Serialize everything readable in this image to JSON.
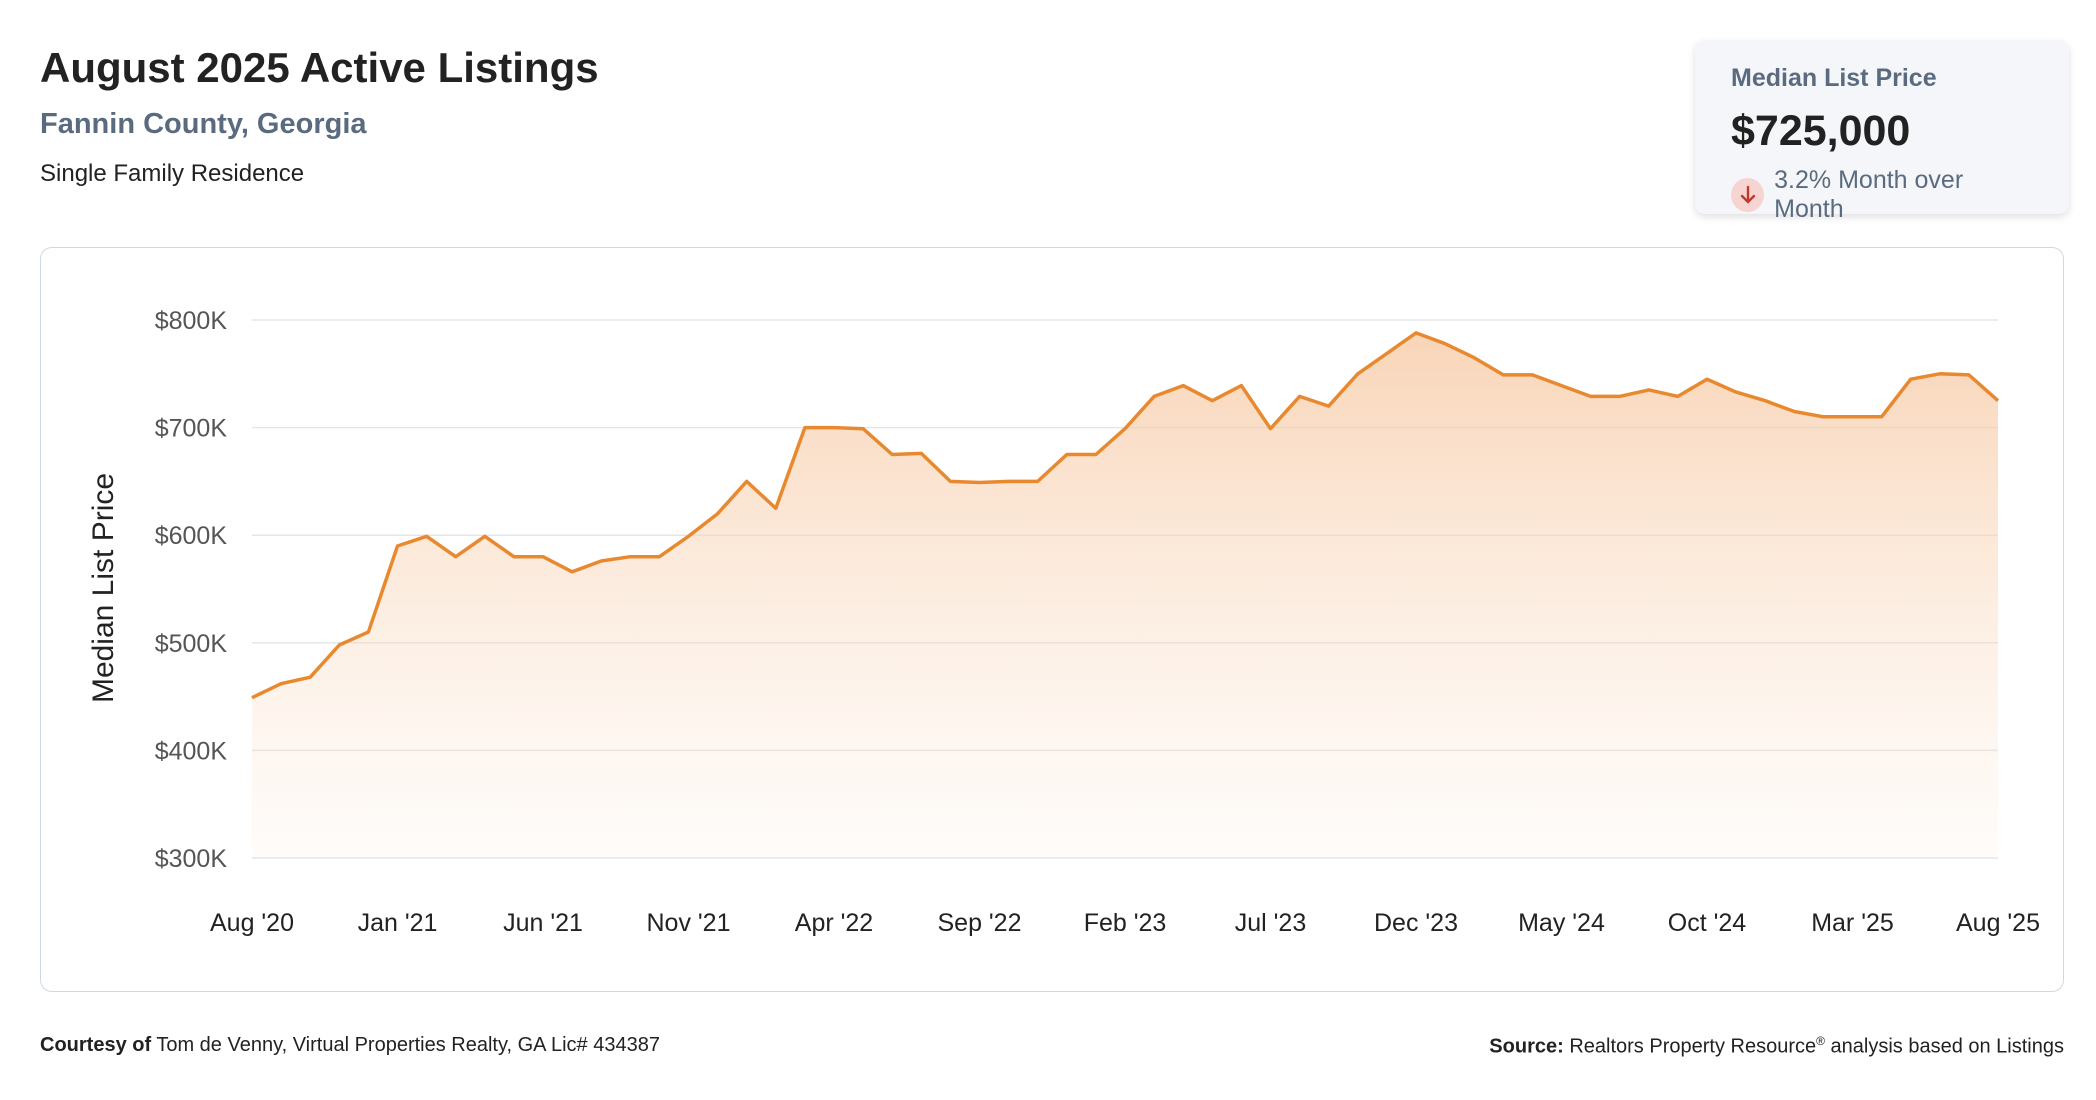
{
  "header": {
    "title": "August 2025 Active Listings",
    "subtitle": "Fannin County, Georgia",
    "segment": "Single Family Residence"
  },
  "stat": {
    "label": "Median List Price",
    "value": "$725,000",
    "change": "3.2% Month over Month",
    "direction_icon": "arrow-down-icon",
    "colors": {
      "icon_bg": "#f6d4d1",
      "icon_fg": "#c0392b"
    }
  },
  "footer": {
    "courtesy_label": "Courtesy of",
    "courtesy_text": "Tom de Venny, Virtual Properties Realty, GA Lic# 434387",
    "source_label": "Source:",
    "source_text_pre": "Realtors Property Resource",
    "source_mark": "®",
    "source_text_post": " analysis based on Listings"
  },
  "chart_data": {
    "type": "area",
    "ylabel": "Median List Price",
    "ylim": [
      300000,
      800000
    ],
    "y_ticks": [
      {
        "value": 300000,
        "label": "$300K"
      },
      {
        "value": 400000,
        "label": "$400K"
      },
      {
        "value": 500000,
        "label": "$500K"
      },
      {
        "value": 600000,
        "label": "$600K"
      },
      {
        "value": 700000,
        "label": "$700K"
      },
      {
        "value": 800000,
        "label": "$800K"
      }
    ],
    "x_ticks": [
      "Aug '20",
      "Jan '21",
      "Jun '21",
      "Nov '21",
      "Apr '22",
      "Sep '22",
      "Feb '23",
      "Jul '23",
      "Dec '23",
      "May '24",
      "Oct '24",
      "Mar '25",
      "Aug '25"
    ],
    "x_start": "Aug '20",
    "x_end": "Aug '25",
    "grid": true,
    "colors": {
      "line": "#e8892f",
      "fill": "#f6c7a0",
      "grid": "#e3e6ea"
    },
    "series": [
      {
        "values": [
          449000,
          462000,
          468000,
          498000,
          510000,
          590000,
          599000,
          580000,
          599000,
          580000,
          580000,
          566000,
          576000,
          580000,
          580000,
          599000,
          620000,
          650000,
          625000,
          700000,
          700000,
          699000,
          675000,
          676000,
          650000,
          649000,
          650000,
          650000,
          675000,
          675000,
          699000,
          729000,
          739000,
          725000,
          739000,
          699000,
          729000,
          720000,
          750000,
          769000,
          788000,
          778000,
          765000,
          749000,
          749000,
          739000,
          729000,
          729000,
          735000,
          729000,
          745000,
          733000,
          725000,
          715000,
          710000,
          710000,
          710000,
          745000,
          750000,
          749000,
          725000
        ]
      }
    ]
  }
}
